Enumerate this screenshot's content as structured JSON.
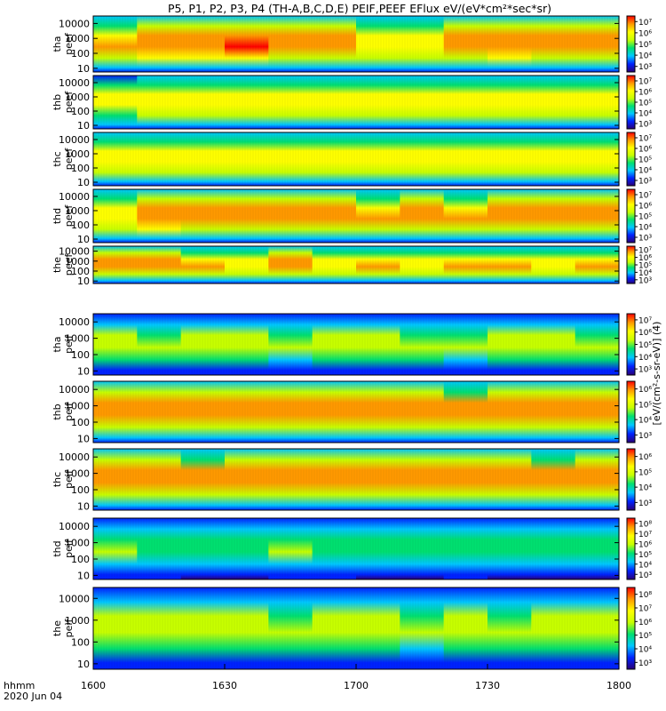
{
  "chart_data": {
    "type": "heatmap",
    "title": "P5, P1, P2, P3, P4 (TH-A,B,C,D,E) PEIF,PEEF EFlux eV/(eV*cm²*sec*sr)",
    "x_ticks": [
      "1600",
      "1630",
      "1700",
      "1730",
      "1800"
    ],
    "x_tick_values": [
      0,
      30,
      60,
      90,
      120
    ],
    "xlim_minutes": [
      0,
      120
    ],
    "x_axis_label": "hhmm",
    "date_label": "2020 Jun 04",
    "y_ticks": [
      "10",
      "100",
      "1000",
      "10000"
    ],
    "y_scale": "log",
    "colorbar_title": "[eV/(cm²-s-sr-eV)] (4)",
    "colormap": [
      "#2a0078",
      "#0022ff",
      "#00c8ff",
      "#00e070",
      "#c8ff00",
      "#ffff00",
      "#ff9900",
      "#ff0000"
    ],
    "panels": [
      {
        "label": "tha peef",
        "colorbar_min_exp": 3,
        "colorbar_max_exp": 7,
        "colorbar_ticks": [
          "10³",
          "10⁴",
          "10⁵",
          "10⁶",
          "10⁷"
        ],
        "fill": [
          0.82,
          0.92,
          0.92,
          0.95,
          0.9,
          0.85,
          0.78,
          0.75,
          0.86,
          0.92,
          0.85,
          0.9
        ]
      },
      {
        "label": "thb peef",
        "colorbar_min_exp": 3,
        "colorbar_max_exp": 7,
        "colorbar_ticks": [
          "10³",
          "10⁴",
          "10⁵",
          "10⁶",
          "10⁷"
        ],
        "fill": [
          0.7,
          0.72,
          0.74,
          0.72,
          0.75,
          0.73,
          0.74,
          0.72,
          0.75,
          0.73,
          0.72,
          0.72
        ]
      },
      {
        "label": "thc peef",
        "colorbar_min_exp": 3,
        "colorbar_max_exp": 7,
        "colorbar_ticks": [
          "10³",
          "10⁴",
          "10⁵",
          "10⁶",
          "10⁷"
        ],
        "fill": [
          0.74,
          0.72,
          0.73,
          0.74,
          0.72,
          0.73,
          0.75,
          0.72,
          0.74,
          0.73,
          0.72,
          0.74
        ]
      },
      {
        "label": "thd peef",
        "colorbar_min_exp": 3,
        "colorbar_max_exp": 7,
        "colorbar_ticks": [
          "10³",
          "10⁴",
          "10⁵",
          "10⁶",
          "10⁷"
        ],
        "fill": [
          0.78,
          0.92,
          0.9,
          0.88,
          0.86,
          0.84,
          0.82,
          0.84,
          0.8,
          0.84,
          0.9,
          0.88
        ]
      },
      {
        "label": "the peef",
        "colorbar_min_exp": 3,
        "colorbar_max_exp": 7,
        "colorbar_ticks": [
          "10³",
          "10⁴",
          "10⁵",
          "10⁶",
          "10⁷"
        ],
        "fill": [
          0.86,
          0.84,
          0.8,
          0.74,
          0.84,
          0.78,
          0.8,
          0.74,
          0.82,
          0.8,
          0.76,
          0.8
        ]
      },
      {
        "label": "tha peif",
        "colorbar_min_exp": 3,
        "colorbar_max_exp": 7,
        "colorbar_ticks": [
          "10³",
          "10⁴",
          "10⁵",
          "10⁶",
          "10⁷"
        ],
        "fill": [
          0.55,
          0.52,
          0.54,
          0.55,
          0.5,
          0.53,
          0.55,
          0.52,
          0.5,
          0.53,
          0.55,
          0.52
        ]
      },
      {
        "label": "thb peif",
        "colorbar_min_exp": 3,
        "colorbar_max_exp": 6,
        "colorbar_ticks": [
          "10³",
          "10⁴",
          "10⁵",
          "10⁶"
        ],
        "fill": [
          0.84,
          0.85,
          0.86,
          0.84,
          0.85,
          0.86,
          0.84,
          0.85,
          0.83,
          0.86,
          0.84,
          0.85
        ]
      },
      {
        "label": "thc peif",
        "colorbar_min_exp": 3,
        "colorbar_max_exp": 6,
        "colorbar_ticks": [
          "10³",
          "10⁴",
          "10⁵",
          "10⁶"
        ],
        "fill": [
          0.84,
          0.85,
          0.83,
          0.86,
          0.84,
          0.85,
          0.84,
          0.86,
          0.85,
          0.84,
          0.83,
          0.85
        ]
      },
      {
        "label": "thd peif",
        "colorbar_min_exp": 3,
        "colorbar_max_exp": 8,
        "colorbar_ticks": [
          "10³",
          "10⁴",
          "10⁵",
          "10⁶",
          "10⁷",
          "10⁸"
        ],
        "fill": [
          0.5,
          0.48,
          0.46,
          0.44,
          0.5,
          0.48,
          0.46,
          0.45,
          0.48,
          0.46,
          0.44,
          0.47
        ]
      },
      {
        "label": "the peif",
        "colorbar_min_exp": 3,
        "colorbar_max_exp": 8,
        "colorbar_ticks": [
          "10³",
          "10⁴",
          "10⁵",
          "10⁶",
          "10⁷",
          "10⁸"
        ],
        "fill": [
          0.58,
          0.56,
          0.55,
          0.54,
          0.52,
          0.55,
          0.54,
          0.5,
          0.56,
          0.52,
          0.55,
          0.54
        ]
      }
    ]
  }
}
